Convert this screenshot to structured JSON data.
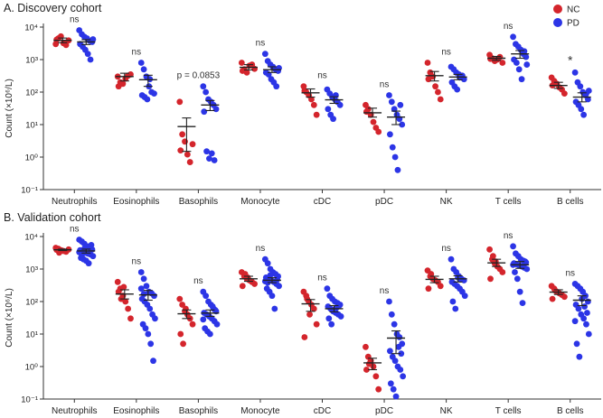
{
  "figure": {
    "legend": [
      {
        "name": "NC",
        "color": "#d4252c"
      },
      {
        "name": "PD",
        "color": "#2c35e6"
      }
    ]
  },
  "chart_data": [
    {
      "type": "scatter",
      "title": "A. Discovery cohort",
      "ylabel": "Count (×10⁶/L)",
      "yscale": "log",
      "ylim": [
        0.1,
        10000
      ],
      "yticks": [
        "10⁻¹",
        "10⁰",
        "10¹",
        "10²",
        "10³",
        "10⁴"
      ],
      "categories": [
        "Neutrophils",
        "Eosinophils",
        "Basophils",
        "Monocyte",
        "cDC",
        "pDC",
        "NK",
        "T cells",
        "B cells"
      ],
      "annotations": [
        "ns",
        "ns",
        "p = 0.0853",
        "ns",
        "ns",
        "ns",
        "ns",
        "ns",
        "*"
      ],
      "series": [
        {
          "name": "NC",
          "color": "#d4252c",
          "points": [
            [
              3000,
              4500,
              5200,
              3200,
              2800,
              3900,
              4100
            ],
            [
              300,
              200,
              180,
              260,
              320,
              350,
              150
            ],
            [
              50,
              5,
              3,
              1.2,
              0.7,
              2.5,
              1.6
            ],
            [
              800,
              500,
              400,
              650,
              700,
              520,
              450
            ],
            [
              150,
              100,
              80,
              60,
              40,
              20,
              110
            ],
            [
              40,
              30,
              20,
              12,
              8,
              6,
              25
            ],
            [
              800,
              400,
              300,
              150,
              100,
              60,
              250
            ],
            [
              1400,
              1100,
              900,
              1000,
              1200,
              800,
              1050
            ],
            [
              280,
              220,
              180,
              140,
              120,
              90,
              160
            ]
          ],
          "mean": [
            3900,
            300,
            8.7,
            580,
            95,
            23,
            320,
            1100,
            160
          ],
          "sem_low": [
            3300,
            220,
            1.5,
            480,
            70,
            17,
            220,
            950,
            130
          ],
          "sem_high": [
            4600,
            380,
            16,
            700,
            125,
            32,
            430,
            1250,
            200
          ]
        },
        {
          "name": "PD",
          "color": "#2c35e6",
          "points": [
            [
              8000,
              6000,
              5000,
              4500,
              3800,
              3500,
              3000,
              2500,
              2000,
              1500,
              1000,
              4200
            ],
            [
              800,
              500,
              300,
              150,
              100,
              90,
              80,
              70,
              60,
              250
            ],
            [
              150,
              100,
              60,
              50,
              40,
              30,
              25,
              1.5,
              0.9,
              1.3,
              0.8
            ],
            [
              1500,
              900,
              700,
              600,
              500,
              450,
              400,
              350,
              250,
              200,
              150,
              550
            ],
            [
              120,
              90,
              70,
              60,
              50,
              40,
              30,
              20,
              15,
              80
            ],
            [
              80,
              50,
              30,
              20,
              15,
              10,
              5,
              2,
              1,
              0.4,
              40
            ],
            [
              600,
              500,
              400,
              350,
              300,
              250,
              200,
              150,
              120,
              280,
              320
            ],
            [
              5000,
              3000,
              2500,
              2000,
              1500,
              1200,
              1000,
              800,
              500,
              250,
              1800,
              700
            ],
            [
              400,
              200,
              150,
              100,
              80,
              60,
              50,
              40,
              30,
              20,
              90,
              110
            ]
          ],
          "mean": [
            3500,
            240,
            40,
            490,
            58,
            17,
            290,
            1500,
            70
          ],
          "sem_low": [
            2900,
            150,
            27,
            400,
            45,
            10,
            240,
            1100,
            50
          ],
          "sem_high": [
            4100,
            330,
            55,
            600,
            72,
            26,
            350,
            1900,
            95
          ]
        }
      ]
    },
    {
      "type": "scatter",
      "title": "B. Validation cohort",
      "ylabel": "Count (×10⁶/L)",
      "yscale": "log",
      "ylim": [
        0.1,
        10000
      ],
      "yticks": [
        "10⁻¹",
        "10⁰",
        "10¹",
        "10²",
        "10³",
        "10⁴"
      ],
      "categories": [
        "Neutrophils",
        "Eosinophils",
        "Basophils",
        "Monocyte",
        "cDC",
        "pDC",
        "NK",
        "T cells",
        "B cells"
      ],
      "annotations": [
        "ns",
        "ns",
        "ns",
        "ns",
        "ns",
        "ns",
        "ns",
        "ns",
        "ns"
      ],
      "series": [
        {
          "name": "NC",
          "color": "#d4252c",
          "points": [
            [
              4500,
              4200,
              3800,
              3600,
              3400,
              4000,
              3900,
              3200,
              3700
            ],
            [
              400,
              250,
              150,
              100,
              60,
              30,
              200,
              120,
              280
            ],
            [
              120,
              80,
              50,
              40,
              30,
              20,
              10,
              5,
              60
            ],
            [
              800,
              600,
              500,
              450,
              400,
              350,
              300,
              700,
              550
            ],
            [
              200,
              150,
              100,
              80,
              60,
              20,
              8,
              120,
              40
            ],
            [
              4,
              2,
              1.5,
              1,
              0.5,
              0.2,
              0.8,
              1.2
            ],
            [
              900,
              600,
              500,
              450,
              400,
              300,
              250,
              700
            ],
            [
              4000,
              2000,
              1500,
              1200,
              1000,
              800,
              500,
              2500,
              1700
            ],
            [
              300,
              250,
              200,
              180,
              160,
              140,
              120,
              220
            ]
          ],
          "mean": [
            3900,
            170,
            42,
            500,
            85,
            1.3,
            480,
            1550,
            195
          ],
          "sem_low": [
            3700,
            120,
            30,
            420,
            50,
            0.8,
            380,
            1200,
            165
          ],
          "sem_high": [
            4100,
            230,
            55,
            600,
            115,
            1.8,
            600,
            2000,
            230
          ]
        },
        {
          "name": "PD",
          "color": "#2c35e6",
          "points": [
            [
              8000,
              7000,
              6000,
              5000,
              4500,
              4000,
              3800,
              3500,
              3200,
              3000,
              2800,
              2500,
              2200,
              2000,
              1800,
              1500,
              5500,
              3300,
              2700,
              4200
            ],
            [
              800,
              500,
              300,
              200,
              180,
              150,
              120,
              100,
              80,
              60,
              40,
              30,
              20,
              15,
              10,
              5,
              1.5,
              250,
              170
            ],
            [
              200,
              150,
              100,
              80,
              60,
              50,
              45,
              40,
              35,
              30,
              25,
              20,
              15,
              12,
              10,
              70,
              55,
              28
            ],
            [
              2000,
              1500,
              1000,
              800,
              700,
              600,
              550,
              500,
              450,
              400,
              350,
              300,
              250,
              200,
              150,
              60,
              480,
              420,
              380,
              650
            ],
            [
              250,
              150,
              120,
              100,
              90,
              80,
              70,
              60,
              50,
              45,
              40,
              35,
              30,
              20,
              55,
              65,
              75
            ],
            [
              100,
              40,
              20,
              10,
              8,
              5,
              3,
              2,
              1.5,
              1,
              0.8,
              0.5,
              0.3,
              0.2,
              0.12,
              4,
              2.5
            ],
            [
              2000,
              1000,
              800,
              600,
              500,
              450,
              400,
              350,
              300,
              250,
              200,
              150,
              100,
              60,
              550,
              480
            ],
            [
              5000,
              3000,
              2500,
              2000,
              1800,
              1600,
              1500,
              1400,
              1300,
              1200,
              1100,
              1000,
              800,
              500,
              200,
              90,
              1700,
              1350
            ],
            [
              350,
              300,
              250,
              200,
              150,
              100,
              80,
              60,
              40,
              30,
              20,
              10,
              5,
              2,
              120,
              70,
              45,
              25
            ]
          ],
          "mean": [
            3600,
            160,
            44,
            450,
            60,
            7.5,
            500,
            1350,
            110
          ],
          "sem_low": [
            3100,
            110,
            35,
            380,
            48,
            2.5,
            400,
            1050,
            75
          ],
          "sem_high": [
            4100,
            220,
            55,
            540,
            75,
            12.5,
            620,
            1700,
            150
          ]
        }
      ]
    }
  ]
}
